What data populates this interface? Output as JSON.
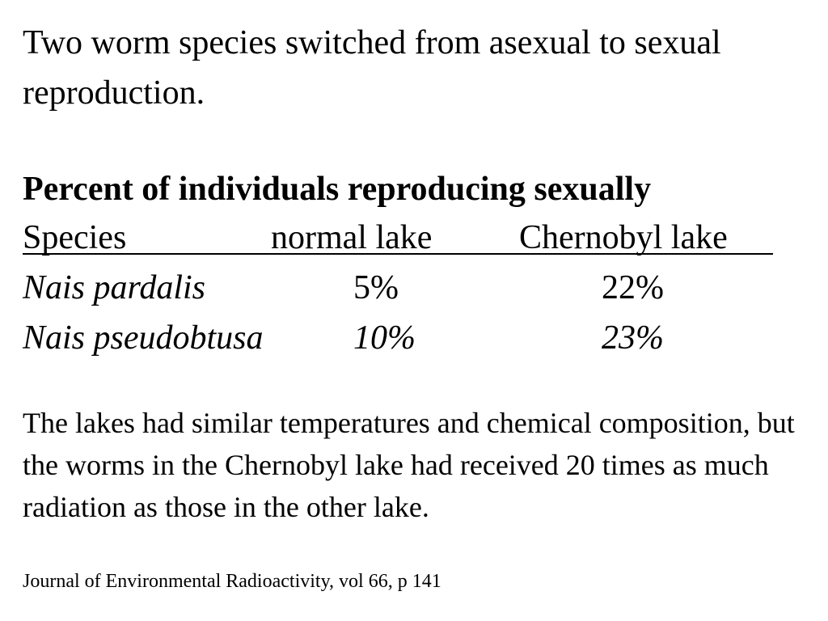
{
  "intro": "Two worm species switched from asexual to sexual reproduction.",
  "table": {
    "title": "Percent of individuals reproducing sexually",
    "headers": {
      "species": "Species",
      "normal": "normal lake",
      "chernobyl": "Chernobyl lake"
    },
    "rows": [
      {
        "species": "Nais pardalis",
        "normal": "5%",
        "chernobyl": "22%"
      },
      {
        "species": "Nais pseudobtusa",
        "normal": "10%",
        "chernobyl": "23%"
      }
    ]
  },
  "body": "The lakes had similar temperatures and chemical composition, but the worms in the Chernobyl lake had received 20 times as much radiation as those in the other lake.",
  "citation": "Journal of Environmental Radioactivity, vol 66, p 141"
}
